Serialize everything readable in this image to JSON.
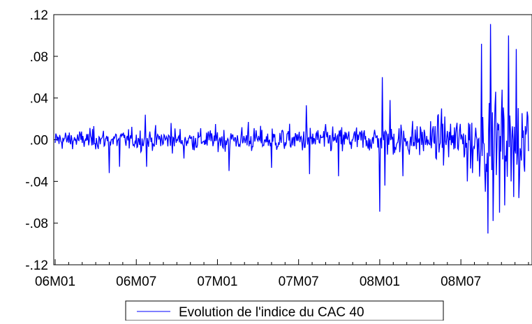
{
  "chart_data": {
    "type": "line",
    "title": "",
    "xlabel": "",
    "ylabel": "",
    "ylim": [
      -0.12,
      0.12
    ],
    "y_ticks": [
      -0.12,
      -0.08,
      -0.04,
      0.0,
      0.04,
      0.08,
      0.12
    ],
    "y_tick_labels": [
      "-.12",
      "-.08",
      "-.04",
      ".00",
      ".04",
      ".08",
      ".12"
    ],
    "x_tick_labels": [
      "06M01",
      "06M07",
      "07M01",
      "07M07",
      "08M01",
      "08M07"
    ],
    "x_tick_positions": [
      0,
      126,
      252,
      378,
      504,
      630
    ],
    "xlim": [
      0,
      735
    ],
    "grid": false,
    "legend_position": "bottom-center",
    "series": [
      {
        "name": "Evolution de l'indice du CAC 40",
        "color": "#0000ff",
        "segments": [
          {
            "at": 0,
            "value": -0.003
          },
          {
            "at": 60,
            "value": 0.013
          },
          {
            "at": 84,
            "value": -0.032
          },
          {
            "at": 100,
            "value": -0.026
          },
          {
            "at": 140,
            "value": 0.024
          },
          {
            "at": 142,
            "value": -0.026
          },
          {
            "at": 180,
            "value": 0.016
          },
          {
            "at": 200,
            "value": -0.018
          },
          {
            "at": 270,
            "value": -0.03
          },
          {
            "at": 300,
            "value": 0.017
          },
          {
            "at": 336,
            "value": -0.027
          },
          {
            "at": 390,
            "value": 0.033
          },
          {
            "at": 395,
            "value": -0.033
          },
          {
            "at": 440,
            "value": -0.035
          },
          {
            "at": 504,
            "value": -0.069
          },
          {
            "at": 508,
            "value": 0.06
          },
          {
            "at": 512,
            "value": -0.044
          },
          {
            "at": 520,
            "value": 0.038
          },
          {
            "at": 540,
            "value": -0.035
          },
          {
            "at": 600,
            "value": 0.03
          },
          {
            "at": 640,
            "value": -0.04
          },
          {
            "at": 648,
            "value": -0.032
          },
          {
            "at": 662,
            "value": 0.092
          },
          {
            "at": 668,
            "value": -0.05
          },
          {
            "at": 672,
            "value": -0.09
          },
          {
            "at": 676,
            "value": 0.111
          },
          {
            "at": 680,
            "value": -0.078
          },
          {
            "at": 684,
            "value": 0.046
          },
          {
            "at": 690,
            "value": -0.07
          },
          {
            "at": 694,
            "value": 0.048
          },
          {
            "at": 698,
            "value": -0.063
          },
          {
            "at": 704,
            "value": 0.1
          },
          {
            "at": 708,
            "value": -0.04
          },
          {
            "at": 712,
            "value": -0.055
          },
          {
            "at": 716,
            "value": 0.087
          },
          {
            "at": 720,
            "value": -0.056
          },
          {
            "at": 728,
            "value": -0.024
          },
          {
            "at": 733,
            "value": 0.027
          }
        ]
      }
    ]
  }
}
